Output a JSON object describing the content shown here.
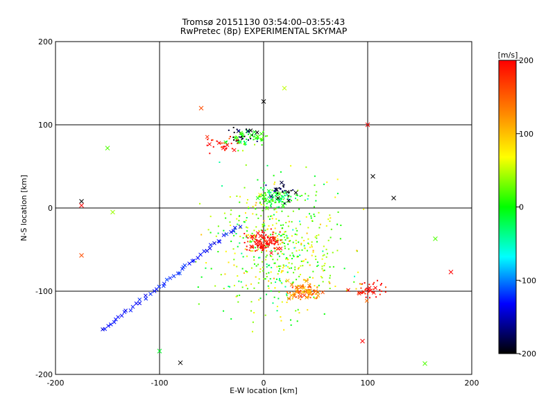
{
  "page": {
    "title": "Tromsø 20151130 03:54:00–03:55:43",
    "subtitle": "RwPretec (8p) EXPERIMENTAL SKYMAP"
  },
  "colors": {
    "scale": [
      "#000000",
      "#0000ff",
      "#00ffff",
      "#00ff00",
      "#ffff00",
      "#ff8000",
      "#ff0000"
    ],
    "grid": "#000000"
  },
  "chart_data": {
    "type": "scatter",
    "title": "Tromsø 20151130 03:54:00–03:55:43",
    "subtitle": "RwPretec (8p) EXPERIMENTAL SKYMAP",
    "xlabel": "E-W location [km]",
    "ylabel": "N-S location [km]",
    "xlim": [
      -200,
      200
    ],
    "ylim": [
      -200,
      200
    ],
    "x_ticks": [
      -200,
      -100,
      0,
      100,
      200
    ],
    "y_ticks": [
      -200,
      -100,
      0,
      100,
      200
    ],
    "grid": true,
    "markers": [
      "x",
      "dot"
    ],
    "colorbar": {
      "label": "[m/s]",
      "min": -200,
      "max": 200,
      "ticks": [
        200,
        100,
        0,
        -100,
        -200
      ],
      "placement": "right"
    },
    "clusters": [
      {
        "x": 0,
        "y": -42,
        "value": 200,
        "count": 110
      },
      {
        "x": 10,
        "y": 12,
        "value": 0,
        "count": 90
      },
      {
        "x": 15,
        "y": 20,
        "value": -200,
        "count": 30
      },
      {
        "x": -15,
        "y": 82,
        "value": 10,
        "count": 50
      },
      {
        "x": -22,
        "y": 88,
        "value": -200,
        "count": 25
      },
      {
        "x": -40,
        "y": 75,
        "value": 200,
        "count": 30
      },
      {
        "x": 40,
        "y": -100,
        "value": 130,
        "count": 90
      },
      {
        "x": 100,
        "y": -100,
        "value": 200,
        "count": 40
      }
    ],
    "line_feature": {
      "x0": -155,
      "y0": -147,
      "x1": -25,
      "y1": -22,
      "value": -130,
      "marker": "x"
    },
    "labeled_points": [
      {
        "x": 0,
        "y": 128,
        "value": -200
      },
      {
        "x": 20,
        "y": 144,
        "value": 50
      },
      {
        "x": -60,
        "y": 120,
        "value": 160
      },
      {
        "x": 100,
        "y": 100,
        "value": 200
      },
      {
        "x": -175,
        "y": 8,
        "value": -200
      },
      {
        "x": -175,
        "y": 3,
        "value": 200
      },
      {
        "x": -175,
        "y": -57,
        "value": 160
      },
      {
        "x": -150,
        "y": 72,
        "value": 20
      },
      {
        "x": 125,
        "y": 12,
        "value": -200
      },
      {
        "x": 105,
        "y": 38,
        "value": -200
      },
      {
        "x": 180,
        "y": -77,
        "value": 200
      },
      {
        "x": 155,
        "y": -187,
        "value": 20
      },
      {
        "x": -80,
        "y": -186,
        "value": -200
      },
      {
        "x": -100,
        "y": -172,
        "value": -10
      },
      {
        "x": 165,
        "y": -37,
        "value": 20
      },
      {
        "x": 95,
        "y": -160,
        "value": 200
      },
      {
        "x": -145,
        "y": -5,
        "value": 40
      }
    ],
    "note": "Scatter of radar sky-map echo locations; marker colour encodes Doppler velocity per the colour bar."
  }
}
